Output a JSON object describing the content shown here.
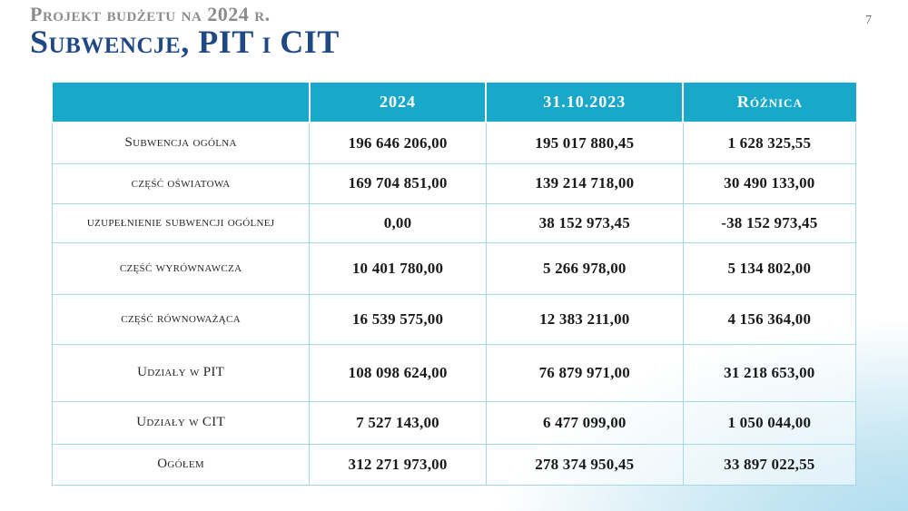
{
  "page": {
    "number": "7"
  },
  "header": {
    "kicker": "Projekt budżetu na 2024 r.",
    "title": "Subwencje, PIT i CIT"
  },
  "colors": {
    "header_teal": "#1aa8ca",
    "table_border": "#a5d9e4",
    "title_blue": "#1f4985",
    "kicker_gray": "#8c8c8c",
    "corner_gradient": "#aedcee"
  },
  "table": {
    "columns": [
      "",
      "2024",
      "31.10.2023",
      "Różnica"
    ],
    "rows": [
      {
        "label": "Subwencja ogólna",
        "y2024": "196 646 206,00",
        "y2023": "195 017 880,45",
        "diff": "1 628 325,55"
      },
      {
        "label": "część oświatowa",
        "y2024": "169 704 851,00",
        "y2023": "139 214 718,00",
        "diff": "30 490 133,00"
      },
      {
        "label": "uzupełnienie subwencji ogólnej",
        "y2024": "0,00",
        "y2023": "38 152 973,45",
        "diff": "-38 152 973,45"
      },
      {
        "label": "część wyrównawcza",
        "y2024": "10 401 780,00",
        "y2023": "5 266 978,00",
        "diff": "5 134 802,00"
      },
      {
        "label": "część równoważąca",
        "y2024": "16 539 575,00",
        "y2023": "12 383 211,00",
        "diff": "4 156 364,00"
      },
      {
        "label": "Udziały w PIT",
        "y2024": "108 098 624,00",
        "y2023": "76 879 971,00",
        "diff": "31 218 653,00"
      },
      {
        "label": "Udziały w CIT",
        "y2024": "7 527 143,00",
        "y2023": "6 477 099,00",
        "diff": "1 050 044,00"
      },
      {
        "label": "Ogółem",
        "y2024": "312 271 973,00",
        "y2023": "278 374 950,45",
        "diff": "33 897 022,55"
      }
    ]
  }
}
